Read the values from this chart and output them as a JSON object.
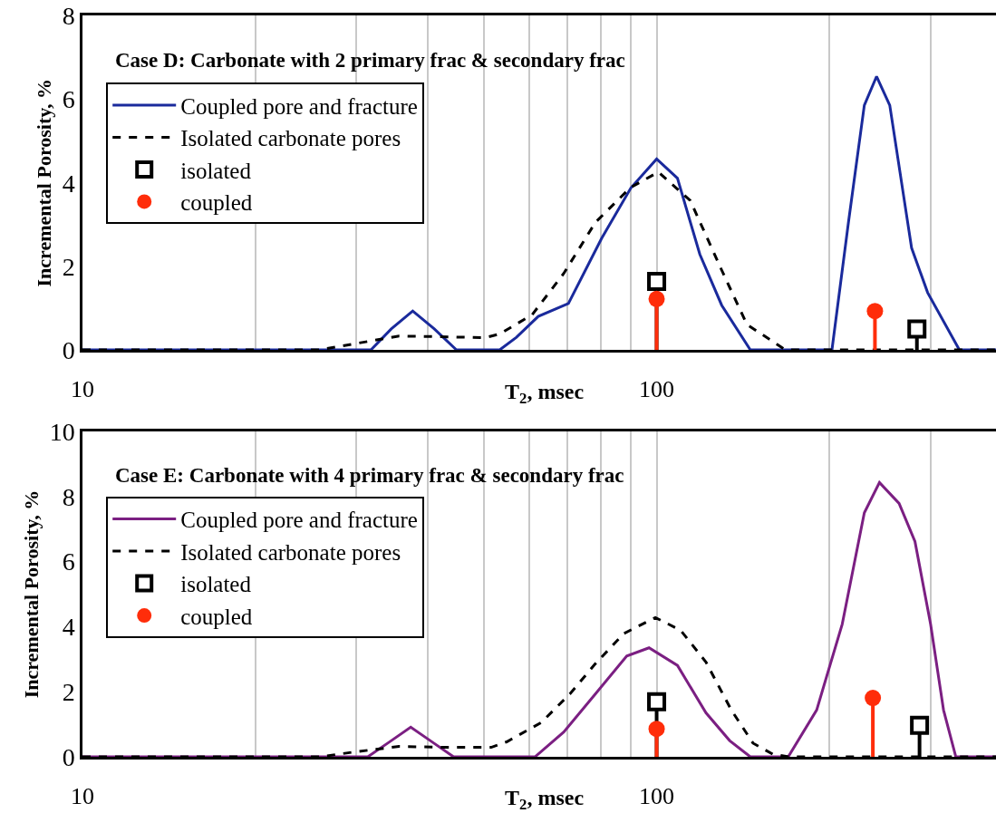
{
  "chart_data": [
    {
      "type": "line",
      "title": "Case D: Carbonate with 2 primary frac & secondary frac",
      "xlabel": "T$_{2}$, msec",
      "ylabel": "Incremental Porosity, %",
      "log": "x",
      "xlim": [
        10,
        390
      ],
      "xticks": [
        10,
        {
          "value": 20,
          "label": null
        },
        {
          "value": 30,
          "label": null
        },
        {
          "value": 40,
          "label": null
        },
        {
          "value": 50,
          "label": null
        },
        {
          "value": 60,
          "label": null
        },
        {
          "value": 70,
          "label": null
        },
        {
          "value": 80,
          "label": null
        },
        {
          "value": 90,
          "label": null
        },
        100,
        {
          "value": 200,
          "label": null
        },
        {
          "value": 300,
          "label": null
        }
      ],
      "ylim": [
        0,
        8
      ],
      "yticks": [
        0,
        2,
        4,
        6,
        8
      ],
      "grid": "x",
      "legend": "top left",
      "series": [
        {
          "name": "Coupled pore and fracture",
          "color": "#1a2a9c",
          "line_style": "solid",
          "x": [
            10,
            31.8,
            34.5,
            37.6,
            41,
            44.8,
            53.3,
            57,
            62.2,
            70.2,
            80.2,
            90.2,
            100,
            108.7,
            118.9,
            129.8,
            145.6,
            202,
            215.8,
            230,
            241.6,
            254.7,
            278,
            296.5,
            336.7,
            390
          ],
          "values": [
            0,
            0,
            0.5,
            0.93,
            0.5,
            0,
            0,
            0.3,
            0.8,
            1.11,
            2.67,
            3.88,
            4.57,
            4.11,
            2.29,
            1.07,
            0,
            0,
            3.05,
            5.86,
            6.55,
            5.86,
            2.44,
            1.37,
            0,
            0
          ]
        },
        {
          "name": "Isolated carbonate pores",
          "color": "#000000",
          "line_style": "dashed",
          "x": [
            10,
            25.9,
            30.2,
            35.6,
            40.5,
            50.3,
            53.3,
            60.7,
            68.9,
            78.2,
            89.9,
            100.7,
            114.4,
            129.8,
            143.6,
            167.5,
            390
          ],
          "values": [
            0,
            0,
            0.16,
            0.33,
            0.32,
            0.29,
            0.38,
            0.84,
            1.83,
            3.05,
            3.88,
            4.26,
            3.58,
            1.91,
            0.61,
            0,
            0
          ]
        },
        {
          "name": "isolated",
          "type": "lollipop",
          "marker": "square",
          "color": "#000000",
          "x": [
            100,
            284
          ],
          "values": [
            1.64,
            0.5
          ]
        },
        {
          "name": "coupled",
          "type": "lollipop",
          "marker": "circle",
          "color": "#ff2d0a",
          "x": [
            100,
            240
          ],
          "values": [
            1.22,
            0.93
          ]
        }
      ]
    },
    {
      "type": "line",
      "title": "Case E: Carbonate with 4 primary frac & secondary frac",
      "xlabel": "T$_{2}$, msec",
      "ylabel": "Incremental Porosity, %",
      "log": "x",
      "xlim": [
        10,
        390
      ],
      "xticks": [
        10,
        {
          "value": 20,
          "label": null
        },
        {
          "value": 30,
          "label": null
        },
        {
          "value": 40,
          "label": null
        },
        {
          "value": 50,
          "label": null
        },
        {
          "value": 60,
          "label": null
        },
        {
          "value": 70,
          "label": null
        },
        {
          "value": 80,
          "label": null
        },
        {
          "value": 90,
          "label": null
        },
        100,
        {
          "value": 200,
          "label": null
        },
        {
          "value": 300,
          "label": null
        }
      ],
      "ylim": [
        0,
        10
      ],
      "yticks": [
        0,
        2,
        4,
        6,
        8,
        10
      ],
      "grid": "x",
      "legend": "top left",
      "series": [
        {
          "name": "Coupled pore and fracture",
          "color": "#7b1f82",
          "line_style": "solid",
          "x": [
            10,
            31.4,
            34.2,
            37.3,
            40.7,
            44.3,
            61.4,
            68.9,
            78.2,
            88.7,
            97,
            108.7,
            121.9,
            134,
            145.6,
            169.5,
            190,
            210.5,
            230,
            244.4,
            264.4,
            281.8,
            300,
            316,
            332,
            390
          ],
          "values": [
            0,
            0,
            0.45,
            0.91,
            0.45,
            0,
            0,
            0.76,
            1.93,
            3.1,
            3.35,
            2.81,
            1.35,
            0.5,
            0,
            0,
            1.44,
            4.08,
            7.5,
            8.43,
            7.79,
            6.62,
            4.08,
            1.44,
            0,
            0
          ]
        },
        {
          "name": "Isolated carbonate pores",
          "color": "#000000",
          "line_style": "dashed",
          "x": [
            10,
            25.9,
            29.5,
            35.6,
            43.2,
            51.5,
            54.8,
            62.9,
            70.6,
            78.2,
            87.7,
            99.5,
            110.1,
            121.9,
            134.9,
            147.2,
            159.3,
            170,
            390
          ],
          "values": [
            0,
            0,
            0.14,
            0.32,
            0.29,
            0.29,
            0.46,
            1.05,
            1.93,
            2.86,
            3.79,
            4.28,
            3.89,
            2.91,
            1.44,
            0.42,
            0.08,
            0,
            0
          ]
        },
        {
          "name": "isolated",
          "type": "lollipop",
          "marker": "square",
          "color": "#000000",
          "x": [
            100,
            287
          ],
          "values": [
            1.69,
            0.97
          ]
        },
        {
          "name": "coupled",
          "type": "lollipop",
          "marker": "circle",
          "color": "#ff2d0a",
          "x": [
            100,
            238
          ],
          "values": [
            0.86,
            1.81
          ]
        }
      ]
    }
  ]
}
